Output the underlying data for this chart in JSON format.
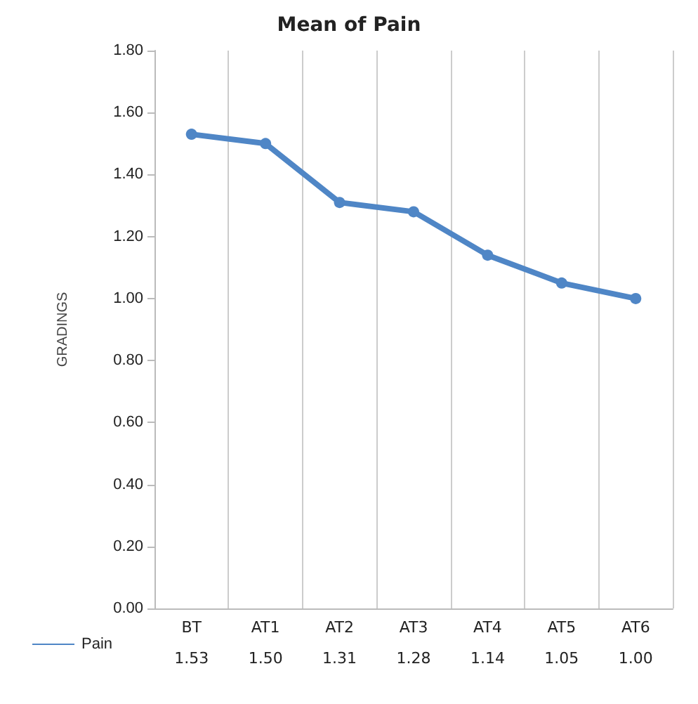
{
  "chart_data": {
    "type": "line",
    "title": "Mean of Pain",
    "ylabel": "GRADINGS",
    "categories": [
      "BT",
      "AT1",
      "AT2",
      "AT3",
      "AT4",
      "AT5",
      "AT6"
    ],
    "series": [
      {
        "name": "Pain",
        "color": "#4f86c6",
        "values": [
          1.53,
          1.5,
          1.31,
          1.28,
          1.14,
          1.05,
          1.0
        ],
        "value_labels": [
          "1.53",
          "1.50",
          "1.31",
          "1.28",
          "1.14",
          "1.05",
          "1.00"
        ]
      }
    ],
    "ylim": [
      0,
      1.8
    ],
    "yticks": [
      {
        "value": 0,
        "label": "0.00"
      },
      {
        "value": 0.2,
        "label": "0.20"
      },
      {
        "value": 0.4,
        "label": "0.40"
      },
      {
        "value": 0.6,
        "label": "0.60"
      },
      {
        "value": 0.8,
        "label": "0.80"
      },
      {
        "value": 1,
        "label": "1.00"
      },
      {
        "value": 1.2,
        "label": "1.20"
      },
      {
        "value": 1.4,
        "label": "1.40"
      },
      {
        "value": 1.6,
        "label": "1.60"
      },
      {
        "value": 1.8,
        "label": "1.80"
      }
    ],
    "grid": "x",
    "legend": "bottom left",
    "marker": "circle",
    "line_style": "solid"
  }
}
